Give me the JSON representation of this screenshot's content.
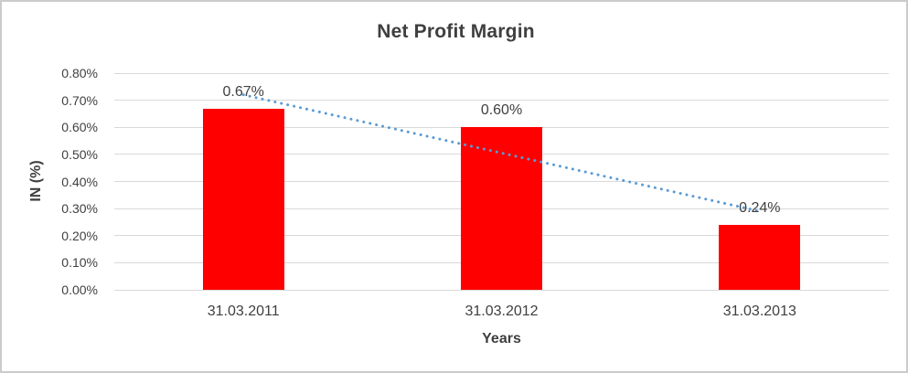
{
  "chart": {
    "title": "Net Profit Margin",
    "y_axis_title": "IN (%)",
    "x_axis_title": "Years"
  },
  "chart_data": {
    "type": "bar",
    "title": "Net Profit Margin",
    "xlabel": "Years",
    "ylabel": "IN (%)",
    "categories": [
      "31.03.2011",
      "31.03.2012",
      "31.03.2013"
    ],
    "values": [
      0.67,
      0.6,
      0.24
    ],
    "data_labels": [
      "0.67%",
      "0.60%",
      "0.24%"
    ],
    "ylim": [
      0,
      0.8
    ],
    "y_ticks": [
      "0.00%",
      "0.10%",
      "0.20%",
      "0.30%",
      "0.40%",
      "0.50%",
      "0.60%",
      "0.70%",
      "0.80%"
    ],
    "grid": "horizontal",
    "legend": "none",
    "bar_color": "#ff0000",
    "gridline_color": "#d9d9d9",
    "text_color": "#404040",
    "trendline": {
      "type": "linear",
      "style": "dotted",
      "color": "#5b9bd5",
      "start_value": 0.72,
      "end_value": 0.29
    }
  }
}
